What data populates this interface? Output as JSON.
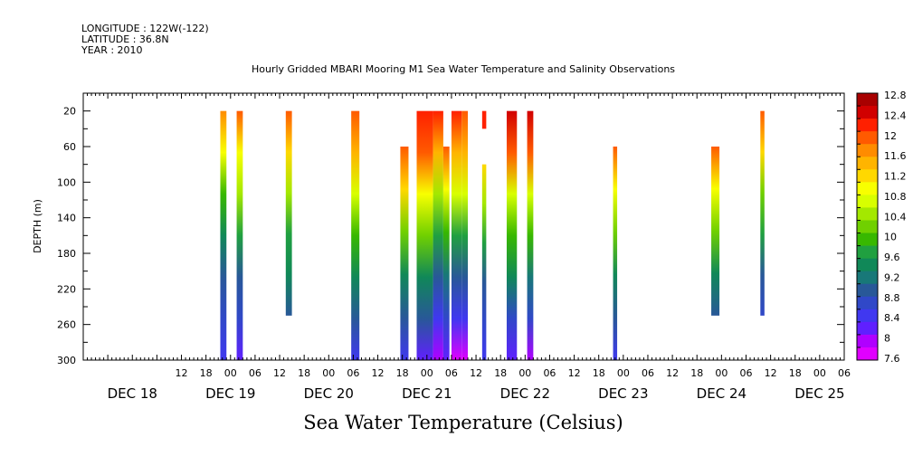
{
  "header": {
    "longitude": "LONGITUDE : 122W(-122)",
    "latitude": "LATITUDE : 36.8N",
    "year": "YEAR : 2010"
  },
  "chart_data": {
    "type": "heatmap",
    "title": "Hourly Gridded MBARI Mooring M1 Sea Water Temperature and Salinity Observations",
    "xlabel": "",
    "ylabel": "DEPTH (m)",
    "colorbar_label": "Sea Water Temperature (Celsius)",
    "x_axis": {
      "unit": "hours since DEC 18 00:00",
      "range": [
        -12,
        174
      ],
      "tick_labels": [
        "12",
        "18",
        "00",
        "06",
        "12",
        "18",
        "00",
        "06",
        "12",
        "18",
        "00",
        "06",
        "12",
        "18",
        "00",
        "06",
        "12",
        "18",
        "00",
        "06",
        "12",
        "18",
        "00",
        "06",
        "12",
        "18",
        "00",
        "06"
      ],
      "tick_hours": [
        12,
        18,
        24,
        30,
        36,
        42,
        48,
        54,
        60,
        66,
        72,
        78,
        84,
        90,
        96,
        102,
        108,
        114,
        120,
        126,
        132,
        138,
        144,
        150,
        156,
        162,
        168,
        174
      ],
      "date_labels": [
        "DEC 18",
        "DEC 19",
        "DEC 20",
        "DEC 21",
        "DEC 22",
        "DEC 23",
        "DEC 24",
        "DEC 25"
      ],
      "date_label_hours": [
        0,
        24,
        48,
        72,
        96,
        120,
        144,
        168
      ]
    },
    "y_axis": {
      "range": [
        0,
        300
      ],
      "inverted": true,
      "tick_labels": [
        "20",
        "60",
        "100",
        "140",
        "180",
        "220",
        "260",
        "300"
      ],
      "ticks": [
        20,
        60,
        100,
        140,
        180,
        220,
        260,
        300
      ]
    },
    "colorbar": {
      "levels": [
        "12.8",
        "12.4",
        "12",
        "11.6",
        "11.2",
        "10.8",
        "10.4",
        "10",
        "9.6",
        "9.2",
        "8.8",
        "8.4",
        "8",
        "7.6"
      ],
      "colors": [
        "#a80000",
        "#d10000",
        "#ff2000",
        "#ff5a00",
        "#ff8c00",
        "#ffb400",
        "#ffd800",
        "#f8ff00",
        "#d8ff00",
        "#a4e800",
        "#70d000",
        "#38b800",
        "#20a040",
        "#108858",
        "#187878",
        "#285898",
        "#3048c8",
        "#4038f0",
        "#6020ff",
        "#b000ff",
        "#e000ff"
      ]
    },
    "columns": [
      {
        "x0": 21.5,
        "x1": 23,
        "top": 20,
        "bottom": 300,
        "temps": [
          11.8,
          11.0,
          10.0,
          9.4,
          9.0,
          8.7,
          8.3
        ]
      },
      {
        "x0": 25.5,
        "x1": 27,
        "top": 20,
        "bottom": 300,
        "temps": [
          12.0,
          11.0,
          10.4,
          9.6,
          9.0,
          8.7,
          8.2
        ]
      },
      {
        "x0": 37.5,
        "x1": 39,
        "top": 20,
        "bottom": 250,
        "temps": [
          11.9,
          11.2,
          10.4,
          9.8,
          9.3,
          8.8
        ]
      },
      {
        "x0": 53.5,
        "x1": 55.5,
        "top": 20,
        "bottom": 300,
        "temps": [
          12.1,
          11.4,
          10.6,
          9.9,
          9.3,
          8.8,
          8.3
        ]
      },
      {
        "x0": 65.5,
        "x1": 67.5,
        "top": 60,
        "bottom": 300,
        "temps": [
          12.0,
          11.2,
          10.3,
          9.5,
          8.9,
          8.3
        ]
      },
      {
        "x0": 69.5,
        "x1": 73.5,
        "top": 20,
        "bottom": 300,
        "temps": [
          12.4,
          12.1,
          11.0,
          10.2,
          9.4,
          8.8,
          8.0
        ]
      },
      {
        "x0": 73.5,
        "x1": 76,
        "top": 20,
        "bottom": 300,
        "temps": [
          12.4,
          11.6,
          10.5,
          9.8,
          9.0,
          8.5,
          7.9
        ]
      },
      {
        "x0": 76,
        "x1": 77.5,
        "top": 60,
        "bottom": 300,
        "temps": [
          12.0,
          11.0,
          10.0,
          9.2,
          8.6,
          8.0
        ]
      },
      {
        "x0": 78,
        "x1": 80.5,
        "top": 20,
        "bottom": 300,
        "temps": [
          12.2,
          11.6,
          10.6,
          9.8,
          9.0,
          8.3,
          7.7
        ]
      },
      {
        "x0": 80.5,
        "x1": 82,
        "top": 20,
        "bottom": 300,
        "temps": [
          12.1,
          11.6,
          10.6,
          9.8,
          9.0,
          8.3,
          7.7
        ]
      },
      {
        "x0": 85.5,
        "x1": 86.5,
        "top": 20,
        "bottom": 40,
        "temps": [
          12.3,
          12.3
        ]
      },
      {
        "x0": 85.5,
        "x1": 86.5,
        "top": 80,
        "bottom": 300,
        "temps": [
          11.3,
          10.4,
          9.6,
          9.0,
          8.6,
          8.3
        ]
      },
      {
        "x0": 91.5,
        "x1": 94,
        "top": 20,
        "bottom": 300,
        "temps": [
          12.6,
          12.1,
          10.8,
          9.9,
          9.3,
          8.7,
          8.0
        ]
      },
      {
        "x0": 96.5,
        "x1": 98,
        "top": 20,
        "bottom": 300,
        "temps": [
          12.5,
          12.0,
          10.8,
          9.9,
          9.2,
          8.6,
          7.9
        ]
      },
      {
        "x0": 117.5,
        "x1": 118.5,
        "top": 60,
        "bottom": 300,
        "temps": [
          11.9,
          11.0,
          10.2,
          9.5,
          8.9,
          8.3
        ]
      },
      {
        "x0": 141.5,
        "x1": 143.5,
        "top": 60,
        "bottom": 250,
        "temps": [
          11.9,
          11.0,
          10.2,
          9.4,
          8.8
        ]
      },
      {
        "x0": 153.5,
        "x1": 154.5,
        "top": 20,
        "bottom": 250,
        "temps": [
          12.1,
          11.2,
          10.3,
          9.6,
          9.0,
          8.6
        ]
      }
    ]
  }
}
